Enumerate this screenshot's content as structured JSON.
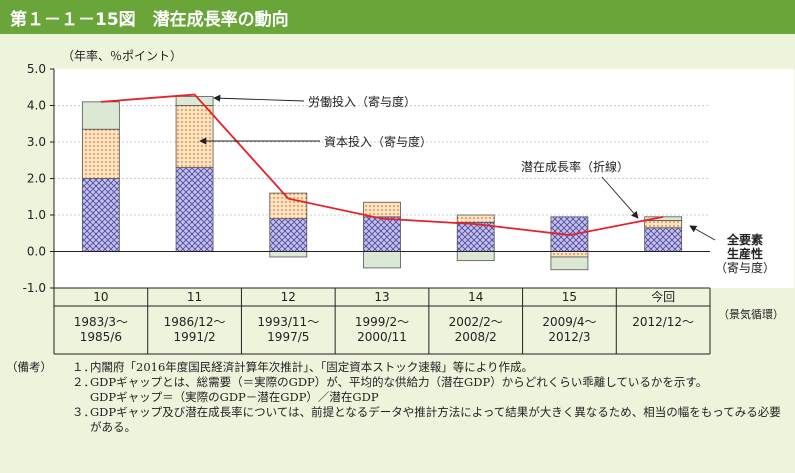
{
  "header": {
    "title": "第１－１－15図　潜在成長率の動向"
  },
  "chart_data": {
    "type": "bar",
    "subtype": "stacked-bar-with-line",
    "unit_label": "（年率、％ポイント）",
    "ylim": [
      -1.0,
      5.0
    ],
    "yticks": [
      "5.0",
      "4.0",
      "3.0",
      "2.0",
      "1.0",
      "0.0",
      "-1.0"
    ],
    "cycle_label": "（景気循環）",
    "categories": [
      {
        "cycle": "10",
        "period": [
          "1983/3～",
          "1985/6"
        ]
      },
      {
        "cycle": "11",
        "period": [
          "1986/12～",
          "1991/2"
        ]
      },
      {
        "cycle": "12",
        "period": [
          "1993/11～",
          "1997/5"
        ]
      },
      {
        "cycle": "13",
        "period": [
          "1999/2～",
          "2000/11"
        ]
      },
      {
        "cycle": "14",
        "period": [
          "2002/2～",
          "2008/2"
        ]
      },
      {
        "cycle": "15",
        "period": [
          "2009/4～",
          "2012/3"
        ]
      },
      {
        "cycle": "今回",
        "period": [
          "2012/12～"
        ]
      }
    ],
    "series": [
      {
        "name": "全要素生産性（寄与度）",
        "color": "#8b88c8",
        "pattern": "crosshatch",
        "values": [
          2.0,
          2.3,
          0.9,
          0.95,
          0.8,
          0.95,
          0.65
        ]
      },
      {
        "name": "資本投入（寄与度）",
        "color": "#f5c89a",
        "pattern": "dots",
        "values": [
          1.35,
          1.7,
          0.7,
          0.4,
          0.2,
          -0.15,
          0.2
        ]
      },
      {
        "name": "労働投入（寄与度）",
        "color": "#dbe9d4",
        "pattern": "plain",
        "values": [
          0.75,
          0.25,
          -0.15,
          -0.45,
          -0.25,
          -0.35,
          0.1
        ]
      }
    ],
    "line": {
      "name": "潜在成長率（折線）",
      "color": "#e8202a",
      "values": [
        4.1,
        4.3,
        1.45,
        0.9,
        0.75,
        0.45,
        0.95
      ]
    },
    "labels": {
      "labor": "労働投入（寄与度）",
      "capital": "資本投入（寄与度）",
      "growth": "潜在成長率（折線）",
      "tfp": [
        "全要素",
        "生産性",
        "（寄与度）"
      ]
    }
  },
  "notes": {
    "lead": "（備考）",
    "items": [
      {
        "num": "１．",
        "text": "内閣府「2016年度国民経済計算年次推計」、「固定資本ストック速報」等により作成。"
      },
      {
        "num": "２．",
        "text": "GDPギャップとは、総需要（＝実際のGDP）が、平均的な供給力（潜在GDP）からどれくらい乖離しているかを示す。"
      },
      {
        "num": "",
        "text": "GDPギャップ＝（実際のGDP－潜在GDP）／潜在GDP"
      },
      {
        "num": "３．",
        "text": "GDPギャップ及び潜在成長率については、前提となるデータや推計方法によって結果が大きく異なるため、相当の幅をもってみる必要がある。"
      }
    ]
  }
}
